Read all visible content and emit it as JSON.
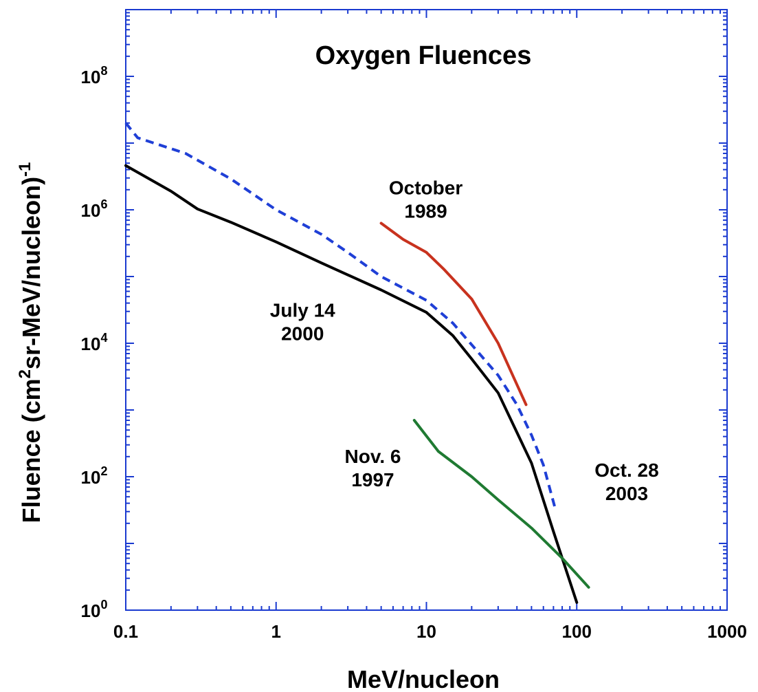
{
  "chart_data": {
    "type": "line",
    "title": "Oxygen Fluences",
    "xlabel": "MeV/nucleon",
    "ylabel_main": "Fluence (cm",
    "ylabel_sup1": "2",
    "ylabel_mid": "sr-MeV/nucleon)",
    "ylabel_sup2": "-1",
    "x_scale": "log",
    "y_scale": "log",
    "xlim": [
      0.1,
      1000
    ],
    "ylim": [
      1,
      1000000000
    ],
    "x_ticks": [
      {
        "value": 0.1,
        "label": "0.1"
      },
      {
        "value": 1,
        "label": "1"
      },
      {
        "value": 10,
        "label": "10"
      },
      {
        "value": 100,
        "label": "100"
      },
      {
        "value": 1000,
        "label": "1000"
      }
    ],
    "y_ticks": [
      {
        "value": 1,
        "base": "10",
        "exp": "0"
      },
      {
        "value": 100,
        "base": "10",
        "exp": "2"
      },
      {
        "value": 10000,
        "base": "10",
        "exp": "4"
      },
      {
        "value": 1000000,
        "base": "10",
        "exp": "6"
      },
      {
        "value": 100000000,
        "base": "10",
        "exp": "8"
      }
    ],
    "series": [
      {
        "name": "July 14 2000",
        "color": "#000000",
        "dash": "solid",
        "points": [
          [
            0.1,
            4600000.0
          ],
          [
            0.2,
            1900000.0
          ],
          [
            0.3,
            1030000.0
          ],
          [
            0.5,
            650000.0
          ],
          [
            1,
            330000.0
          ],
          [
            2,
            160000.0
          ],
          [
            5,
            63000.0
          ],
          [
            10,
            29000.0
          ],
          [
            15,
            13000.0
          ],
          [
            20,
            5800.0
          ],
          [
            30,
            1800.0
          ],
          [
            50,
            160.0
          ],
          [
            70,
            15.0
          ],
          [
            100,
            1.3
          ]
        ]
      },
      {
        "name": "Oct. 28 2003",
        "color": "#1f3fd6",
        "dash": "dashed",
        "points": [
          [
            0.1,
            20000000.0
          ],
          [
            0.12,
            12000000.0
          ],
          [
            0.25,
            7000000.0
          ],
          [
            0.5,
            2900000.0
          ],
          [
            1,
            1000000.0
          ],
          [
            2,
            430000.0
          ],
          [
            3,
            230000.0
          ],
          [
            5,
            100000.0
          ],
          [
            10,
            44000.0
          ],
          [
            15,
            20000.0
          ],
          [
            20,
            9500.0
          ],
          [
            30,
            3300.0
          ],
          [
            40,
            1200.0
          ],
          [
            50,
            420.0
          ],
          [
            60,
            150.0
          ],
          [
            72,
            33.0
          ]
        ]
      },
      {
        "name": "October 1989",
        "color": "#c8321e",
        "dash": "solid",
        "points": [
          [
            5,
            630000.0
          ],
          [
            7,
            360000.0
          ],
          [
            10,
            230000.0
          ],
          [
            13,
            130000.0
          ],
          [
            20,
            46000.0
          ],
          [
            30,
            10000.0
          ],
          [
            38,
            3100.0
          ],
          [
            46,
            1200.0
          ]
        ]
      },
      {
        "name": "Nov. 6 1997",
        "color": "#1f7a32",
        "dash": "solid",
        "points": [
          [
            8.3,
            700.0
          ],
          [
            12,
            240.0
          ],
          [
            20,
            100.0
          ],
          [
            30,
            45.0
          ],
          [
            50,
            17.0
          ],
          [
            80,
            6.0
          ],
          [
            120,
            2.2
          ]
        ]
      }
    ],
    "annotations": [
      {
        "lines": [
          "October",
          "1989"
        ],
        "x": 9.9,
        "y": 1700000.0
      },
      {
        "lines": [
          "July 14",
          "2000"
        ],
        "x": 1.5,
        "y": 25000.0
      },
      {
        "lines": [
          "Nov. 6",
          "1997"
        ],
        "x": 4.4,
        "y": 160.0
      },
      {
        "lines": [
          "Oct. 28",
          "2003"
        ],
        "x": 215,
        "y": 100.0
      }
    ],
    "grid": false,
    "legend": "none"
  }
}
